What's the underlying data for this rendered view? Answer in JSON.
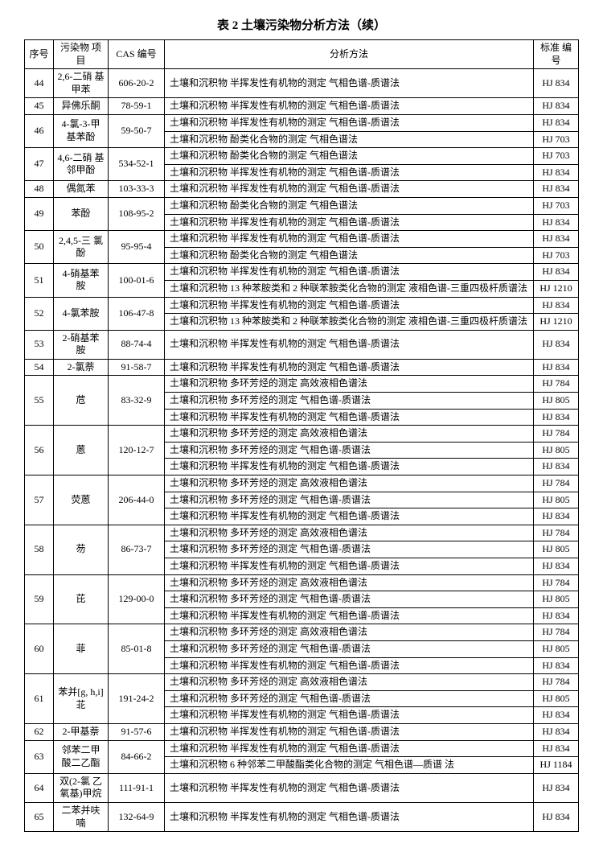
{
  "title": "表 2  土壤污染物分析方法（续）",
  "headers": {
    "seq": "序号",
    "name": "污染物\n项目",
    "cas": "CAS 编号",
    "method": "分析方法",
    "std": "标准\n编号"
  },
  "rows": [
    {
      "seq": "44",
      "name": "2,6-二硝\n基甲苯",
      "cas": "606-20-2",
      "methods": [
        [
          "土壤和沉积物  半挥发性有机物的测定  气相色谱-质谱法",
          "HJ 834"
        ]
      ]
    },
    {
      "seq": "45",
      "name": "异佛乐酮",
      "cas": "78-59-1",
      "methods": [
        [
          "土壤和沉积物  半挥发性有机物的测定  气相色谱-质谱法",
          "HJ 834"
        ]
      ]
    },
    {
      "seq": "46",
      "name": "4-氯-3-甲\n基苯酚",
      "cas": "59-50-7",
      "methods": [
        [
          "土壤和沉积物  半挥发性有机物的测定  气相色谱-质谱法",
          "HJ 834"
        ],
        [
          "土壤和沉积物  酚类化合物的测定  气相色谱法",
          "HJ 703"
        ]
      ]
    },
    {
      "seq": "47",
      "name": "4,6-二硝\n基邻甲酚",
      "cas": "534-52-1",
      "methods": [
        [
          "土壤和沉积物  酚类化合物的测定  气相色谱法",
          "HJ 703"
        ],
        [
          "土壤和沉积物  半挥发性有机物的测定  气相色谱-质谱法",
          "HJ 834"
        ]
      ]
    },
    {
      "seq": "48",
      "name": "偶氮苯",
      "cas": "103-33-3",
      "methods": [
        [
          "土壤和沉积物  半挥发性有机物的测定  气相色谱-质谱法",
          "HJ 834"
        ]
      ]
    },
    {
      "seq": "49",
      "name": "苯酚",
      "cas": "108-95-2",
      "methods": [
        [
          "土壤和沉积物  酚类化合物的测定  气相色谱法",
          "HJ 703"
        ],
        [
          "土壤和沉积物  半挥发性有机物的测定  气相色谱-质谱法",
          "HJ 834"
        ]
      ]
    },
    {
      "seq": "50",
      "name": "2,4,5-三\n氯酚",
      "cas": "95-95-4",
      "methods": [
        [
          "土壤和沉积物  半挥发性有机物的测定  气相色谱-质谱法",
          "HJ 834"
        ],
        [
          "土壤和沉积物  酚类化合物的测定  气相色谱法",
          "HJ 703"
        ]
      ]
    },
    {
      "seq": "51",
      "name": "4-硝基苯\n胺",
      "cas": "100-01-6",
      "methods": [
        [
          "土壤和沉积物  半挥发性有机物的测定  气相色谱-质谱法",
          "HJ 834"
        ],
        [
          "土壤和沉积物  13 种苯胺类和 2 种联苯胺类化合物的测定\n液相色谱-三重四极杆质谱法",
          "HJ 1210"
        ]
      ]
    },
    {
      "seq": "52",
      "name": "4-氯苯胺",
      "cas": "106-47-8",
      "methods": [
        [
          "土壤和沉积物  半挥发性有机物的测定  气相色谱-质谱法",
          "HJ 834"
        ],
        [
          "土壤和沉积物  13 种苯胺类和 2 种联苯胺类化合物的测定\n液相色谱-三重四极杆质谱法",
          "HJ 1210"
        ]
      ]
    },
    {
      "seq": "53",
      "name": "2-硝基苯\n胺",
      "cas": "88-74-4",
      "methods": [
        [
          "土壤和沉积物  半挥发性有机物的测定  气相色谱-质谱法",
          "HJ 834"
        ]
      ]
    },
    {
      "seq": "54",
      "name": "2-氯萘",
      "cas": "91-58-7",
      "methods": [
        [
          "土壤和沉积物  半挥发性有机物的测定  气相色谱-质谱法",
          "HJ 834"
        ]
      ]
    },
    {
      "seq": "55",
      "name": "苊",
      "cas": "83-32-9",
      "methods": [
        [
          "土壤和沉积物  多环芳烃的测定  高效液相色谱法",
          "HJ 784"
        ],
        [
          "土壤和沉积物  多环芳烃的测定  气相色谱-质谱法",
          "HJ 805"
        ],
        [
          "土壤和沉积物  半挥发性有机物的测定  气相色谱-质谱法",
          "HJ 834"
        ]
      ]
    },
    {
      "seq": "56",
      "name": "蒽",
      "cas": "120-12-7",
      "methods": [
        [
          "土壤和沉积物  多环芳烃的测定  高效液相色谱法",
          "HJ 784"
        ],
        [
          "土壤和沉积物  多环芳烃的测定  气相色谱-质谱法",
          "HJ 805"
        ],
        [
          "土壤和沉积物  半挥发性有机物的测定  气相色谱-质谱法",
          "HJ 834"
        ]
      ]
    },
    {
      "seq": "57",
      "name": "荧蒽",
      "cas": "206-44-0",
      "methods": [
        [
          "土壤和沉积物  多环芳烃的测定  高效液相色谱法",
          "HJ 784"
        ],
        [
          "土壤和沉积物  多环芳烃的测定  气相色谱-质谱法",
          "HJ 805"
        ],
        [
          "土壤和沉积物  半挥发性有机物的测定  气相色谱-质谱法",
          "HJ 834"
        ]
      ]
    },
    {
      "seq": "58",
      "name": "芴",
      "cas": "86-73-7",
      "methods": [
        [
          "土壤和沉积物  多环芳烃的测定  高效液相色谱法",
          "HJ 784"
        ],
        [
          "土壤和沉积物  多环芳烃的测定  气相色谱-质谱法",
          "HJ 805"
        ],
        [
          "土壤和沉积物  半挥发性有机物的测定  气相色谱-质谱法",
          "HJ 834"
        ]
      ]
    },
    {
      "seq": "59",
      "name": "芘",
      "cas": "129-00-0",
      "methods": [
        [
          "土壤和沉积物  多环芳烃的测定  高效液相色谱法",
          "HJ 784"
        ],
        [
          "土壤和沉积物  多环芳烃的测定  气相色谱-质谱法",
          "HJ 805"
        ],
        [
          "土壤和沉积物  半挥发性有机物的测定  气相色谱-质谱法",
          "HJ 834"
        ]
      ]
    },
    {
      "seq": "60",
      "name": "菲",
      "cas": "85-01-8",
      "methods": [
        [
          "土壤和沉积物  多环芳烃的测定  高效液相色谱法",
          "HJ 784"
        ],
        [
          "土壤和沉积物  多环芳烃的测定  气相色谱-质谱法",
          "HJ 805"
        ],
        [
          "土壤和沉积物  半挥发性有机物的测定  气相色谱-质谱法",
          "HJ 834"
        ]
      ]
    },
    {
      "seq": "61",
      "name": "苯并[g,\nh,i]苝",
      "cas": "191-24-2",
      "methods": [
        [
          "土壤和沉积物  多环芳烃的测定  高效液相色谱法",
          "HJ 784"
        ],
        [
          "土壤和沉积物  多环芳烃的测定  气相色谱-质谱法",
          "HJ 805"
        ],
        [
          "土壤和沉积物  半挥发性有机物的测定  气相色谱-质谱法",
          "HJ 834"
        ]
      ]
    },
    {
      "seq": "62",
      "name": "2-甲基萘",
      "cas": "91-57-6",
      "methods": [
        [
          "土壤和沉积物  半挥发性有机物的测定  气相色谱-质谱法",
          "HJ 834"
        ]
      ]
    },
    {
      "seq": "63",
      "name": "邻苯二甲\n酸二乙酯",
      "cas": "84-66-2",
      "methods": [
        [
          "土壤和沉积物  半挥发性有机物的测定  气相色谱-质谱法",
          "HJ 834"
        ],
        [
          "土壤和沉积物  6 种邻苯二甲酸酯类化合物的测定  气相色谱—质谱\n法",
          "HJ 1184"
        ]
      ]
    },
    {
      "seq": "64",
      "name": "双(2-氯\n乙氧基)甲烷",
      "cas": "111-91-1",
      "methods": [
        [
          "土壤和沉积物  半挥发性有机物的测定  气相色谱-质谱法",
          "HJ 834"
        ]
      ]
    },
    {
      "seq": "65",
      "name": "二苯并呋\n喃",
      "cas": "132-64-9",
      "methods": [
        [
          "土壤和沉积物  半挥发性有机物的测定  气相色谱-质谱法",
          "HJ 834"
        ]
      ]
    }
  ]
}
